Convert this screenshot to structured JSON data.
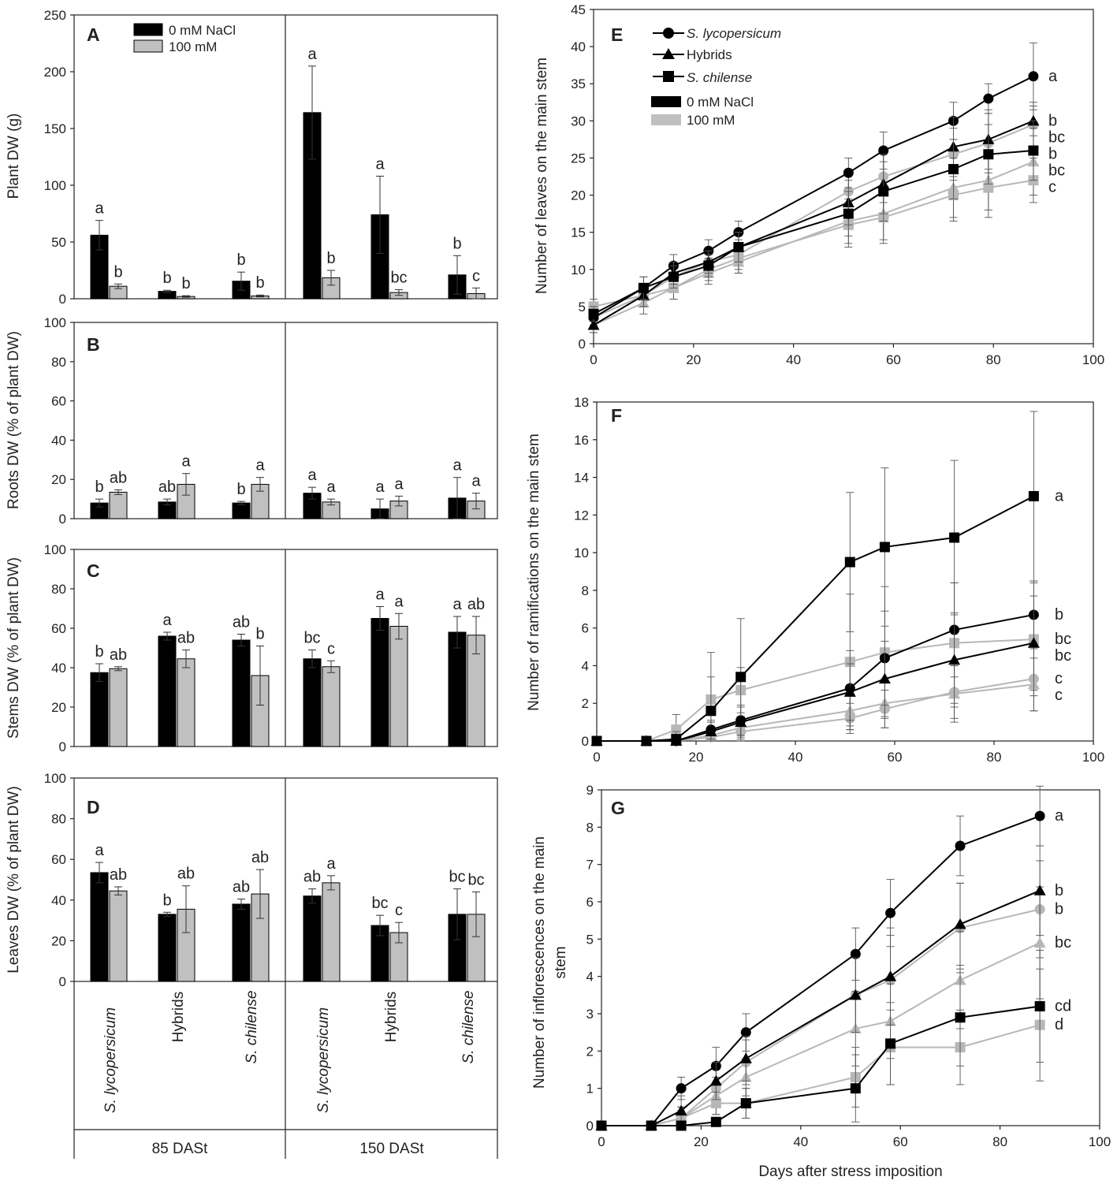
{
  "legend_bars": {
    "ctrl": "0 mM NaCl",
    "salt": "100 mM"
  },
  "legend_lines": {
    "s_lyco": "S. lycopersicum",
    "hybrids": "Hybrids",
    "s_chil": "S. chilense",
    "ctrl": "0 mM NaCl",
    "salt": "100 mM"
  },
  "colors": {
    "ctrl": "#000000",
    "salt": "#c0c0c0",
    "lineSalt": "#b7b7b7",
    "axis": "#222222"
  },
  "x_categories": {
    "c1": "S. lycopersicum",
    "c2": "Hybrids",
    "c3": "S. chilense",
    "c4": "S. lycopersicum",
    "c5": "Hybrids",
    "c6": "S. chilense"
  },
  "x_groups": {
    "g1": "85 DASt",
    "g2": "150 DASt"
  },
  "x_axis_title": "Days after stress imposition",
  "chart_data": [
    {
      "id": "A",
      "type": "bar",
      "panel_label": "A",
      "ylabel": "Plant DW (g)",
      "ylim": [
        0,
        250
      ],
      "yticks": [
        "0",
        "50",
        "100",
        "150",
        "200",
        "250"
      ],
      "categories": [
        "S. lycopersicum",
        "Hybrids",
        "S. chilense",
        "S. lycopersicum",
        "Hybrids",
        "S. chilense"
      ],
      "series": [
        {
          "name": "0 mM NaCl",
          "values": [
            56,
            6.5,
            15.5,
            164,
            74,
            21
          ],
          "errors": [
            13,
            1,
            8,
            41,
            34,
            17
          ],
          "letters": [
            "a",
            "b",
            "b",
            "a",
            "a",
            "b"
          ]
        },
        {
          "name": "100 mM",
          "values": [
            11,
            2,
            2.5,
            18.5,
            5.5,
            4.5
          ],
          "errors": [
            2,
            0.7,
            0.8,
            6.5,
            2.5,
            5
          ],
          "letters": [
            "b",
            "b",
            "b",
            "b",
            "bc",
            "c"
          ]
        }
      ]
    },
    {
      "id": "B",
      "type": "bar",
      "panel_label": "B",
      "ylabel": "Roots DW (% of plant DW)",
      "ylim": [
        0,
        100
      ],
      "yticks": [
        "0",
        "20",
        "40",
        "60",
        "80",
        "100"
      ],
      "categories": [
        "S. lycopersicum",
        "Hybrids",
        "S. chilense",
        "S. lycopersicum",
        "Hybrids",
        "S. chilense"
      ],
      "series": [
        {
          "name": "0 mM NaCl",
          "values": [
            8,
            8.5,
            8,
            13,
            5,
            10.5
          ],
          "errors": [
            2,
            1.5,
            0.8,
            3,
            5,
            10.5
          ],
          "letters": [
            "b",
            "ab",
            "b",
            "a",
            "a",
            "a"
          ]
        },
        {
          "name": "100 mM",
          "values": [
            13.5,
            17.5,
            17.5,
            8.5,
            9,
            9
          ],
          "errors": [
            1.2,
            5.5,
            3.5,
            1.5,
            2.5,
            4
          ],
          "letters": [
            "ab",
            "a",
            "a",
            "a",
            "a",
            "a"
          ]
        }
      ]
    },
    {
      "id": "C",
      "type": "bar",
      "panel_label": "C",
      "ylabel": "Stems DW (% of plant DW)",
      "ylim": [
        0,
        100
      ],
      "yticks": [
        "0",
        "20",
        "40",
        "60",
        "80",
        "100"
      ],
      "categories": [
        "S. lycopersicum",
        "Hybrids",
        "S. chilense",
        "S. lycopersicum",
        "Hybrids",
        "S. chilense"
      ],
      "series": [
        {
          "name": "0 mM NaCl",
          "values": [
            37.5,
            56,
            54,
            44.5,
            65,
            58
          ],
          "errors": [
            4.5,
            2,
            3,
            4.5,
            6,
            8
          ],
          "letters": [
            "b",
            "a",
            "ab",
            "bc",
            "a",
            "a"
          ]
        },
        {
          "name": "100 mM",
          "values": [
            39.5,
            44.5,
            36,
            40.5,
            61,
            56.5
          ],
          "errors": [
            1,
            4.5,
            15,
            3,
            6.5,
            9.5
          ],
          "letters": [
            "ab",
            "ab",
            "b",
            "c",
            "a",
            "ab"
          ]
        }
      ]
    },
    {
      "id": "D",
      "type": "bar",
      "panel_label": "D",
      "ylabel": "Leaves DW (% of plant DW)",
      "ylim": [
        0,
        100
      ],
      "yticks": [
        "0",
        "20",
        "40",
        "60",
        "80",
        "100"
      ],
      "categories": [
        "S. lycopersicum",
        "Hybrids",
        "S. chilense",
        "S. lycopersicum",
        "Hybrids",
        "S. chilense"
      ],
      "series": [
        {
          "name": "0 mM NaCl",
          "values": [
            53.5,
            33,
            38,
            42,
            27.5,
            33
          ],
          "errors": [
            5,
            1,
            2.5,
            3.5,
            5,
            12.5
          ],
          "letters": [
            "a",
            "b",
            "ab",
            "ab",
            "bc",
            "bc"
          ]
        },
        {
          "name": "100 mM",
          "values": [
            44.5,
            35.5,
            43,
            48.5,
            24,
            33
          ],
          "errors": [
            2,
            11.5,
            12,
            3.5,
            5,
            11
          ],
          "letters": [
            "ab",
            "ab",
            "ab",
            "a",
            "c",
            "bc"
          ]
        }
      ]
    },
    {
      "id": "E",
      "type": "line",
      "panel_label": "E",
      "ylabel": "Number of leaves on the main stem",
      "xlim": [
        0,
        100
      ],
      "ylim": [
        0,
        45
      ],
      "xticks": [
        "0",
        "20",
        "40",
        "60",
        "80",
        "100"
      ],
      "yticks": [
        "0",
        "5",
        "10",
        "15",
        "20",
        "25",
        "30",
        "35",
        "40",
        "45"
      ],
      "x": [
        0,
        10,
        16,
        23,
        29,
        51,
        58,
        72,
        79,
        88
      ],
      "series": [
        {
          "name": "S. lycopersicum 0 mM NaCl",
          "marker": "circle",
          "treatment": "ctrl",
          "values": [
            3.5,
            7.5,
            10.5,
            12.5,
            15,
            23,
            26,
            30,
            33,
            36
          ],
          "err": [
            1,
            1.5,
            1.5,
            1.5,
            1.5,
            2,
            2.5,
            2.5,
            2,
            4.5
          ],
          "letter": "a"
        },
        {
          "name": "Hybrids 0 mM NaCl",
          "marker": "triangle",
          "treatment": "ctrl",
          "values": [
            2.5,
            6.5,
            9.5,
            11,
            13,
            19,
            21.5,
            26.5,
            27.5,
            30
          ],
          "err": [
            1,
            1.5,
            1.5,
            1.5,
            2,
            3,
            4,
            4,
            4,
            2
          ],
          "letter": "b"
        },
        {
          "name": "S. chilense 0 mM NaCl",
          "marker": "square",
          "treatment": "ctrl",
          "values": [
            4,
            7.5,
            9,
            10.5,
            13,
            17.5,
            20.5,
            23.5,
            25.5,
            26
          ],
          "err": [
            1,
            1.5,
            1.5,
            1.5,
            2,
            3,
            4,
            4,
            4,
            4
          ],
          "letter": "b"
        },
        {
          "name": "S. lycopersicum 100 mM",
          "marker": "circle",
          "treatment": "salt",
          "values": [
            3.5,
            6.5,
            9,
            11,
            12,
            20.5,
            22.5,
            25.5,
            27,
            29.5
          ],
          "err": [
            1,
            1.5,
            1.5,
            1.5,
            2,
            3,
            3.5,
            3.5,
            4,
            3
          ],
          "letter": "bc"
        },
        {
          "name": "Hybrids 100 mM",
          "marker": "triangle",
          "treatment": "salt",
          "values": [
            2.5,
            5.5,
            7.5,
            9.5,
            11,
            16.5,
            17.5,
            21,
            22,
            24.5
          ],
          "err": [
            1,
            1.5,
            1.5,
            1.5,
            1.5,
            3,
            3.5,
            4,
            4,
            4.5
          ],
          "letter": "bc"
        },
        {
          "name": "S. chilense 100 mM",
          "marker": "square",
          "treatment": "salt",
          "values": [
            5,
            6.5,
            7.5,
            10,
            11.5,
            16,
            17,
            20,
            21,
            22
          ],
          "err": [
            1,
            1.5,
            1.5,
            1.5,
            2,
            3,
            3.5,
            3.5,
            4,
            3
          ],
          "letter": "c"
        }
      ]
    },
    {
      "id": "F",
      "type": "line",
      "panel_label": "F",
      "ylabel": "Number of ramifications on the main stem",
      "xlim": [
        0,
        100
      ],
      "ylim": [
        0,
        18
      ],
      "xticks": [
        "0",
        "20",
        "40",
        "60",
        "80",
        "100"
      ],
      "yticks": [
        "0",
        "2",
        "4",
        "6",
        "8",
        "10",
        "12",
        "14",
        "16",
        "18"
      ],
      "x": [
        0,
        10,
        16,
        23,
        29,
        51,
        58,
        72,
        88
      ],
      "series": [
        {
          "name": "S. chilense 0 mM NaCl",
          "marker": "square",
          "treatment": "ctrl",
          "values": [
            0,
            0,
            0.1,
            1.6,
            3.4,
            9.5,
            10.3,
            10.8,
            13
          ],
          "err": [
            0,
            0,
            0.4,
            3.1,
            3.1,
            3.7,
            4.2,
            4.1,
            4.5
          ],
          "letter": "a"
        },
        {
          "name": "S. lycopersicum 0 mM NaCl",
          "marker": "circle",
          "treatment": "ctrl",
          "values": [
            0,
            0,
            0,
            0.6,
            1.1,
            2.8,
            4.4,
            5.9,
            6.7
          ],
          "err": [
            0,
            0,
            0,
            0.5,
            0.8,
            2,
            2.5,
            2.5,
            1.8
          ],
          "letter": "b"
        },
        {
          "name": "S. chilense 100 mM",
          "marker": "square",
          "treatment": "salt",
          "values": [
            0,
            0,
            0.6,
            2.2,
            2.7,
            4.2,
            4.7,
            5.2,
            5.4
          ],
          "err": [
            0,
            0,
            0.8,
            1.2,
            1.2,
            3.6,
            3.5,
            3.2,
            3
          ],
          "letter": "bc"
        },
        {
          "name": "Hybrids 0 mM NaCl",
          "marker": "triangle",
          "treatment": "ctrl",
          "values": [
            0,
            0,
            0,
            0.5,
            1,
            2.6,
            3.3,
            4.3,
            5.2
          ],
          "err": [
            0,
            0,
            0,
            0.5,
            0.8,
            1.5,
            2,
            2.5,
            2.5
          ],
          "letter": "bc"
        },
        {
          "name": "S. lycopersicum 100 mM",
          "marker": "circle",
          "treatment": "salt",
          "values": [
            0,
            0,
            0,
            0.2,
            0.5,
            1.2,
            1.7,
            2.6,
            3.3
          ],
          "err": [
            0,
            0,
            0,
            0.3,
            0.5,
            0.8,
            1,
            1.4,
            1.7
          ],
          "letter": "c"
        },
        {
          "name": "Hybrids 100 mM",
          "marker": "triangle",
          "treatment": "salt",
          "values": [
            0,
            0,
            0,
            0.3,
            0.7,
            1.6,
            2,
            2.5,
            3
          ],
          "err": [
            0,
            0,
            0,
            0.4,
            0.6,
            1,
            1.3,
            1.5,
            1.4
          ],
          "letter": "c"
        }
      ]
    },
    {
      "id": "G",
      "type": "line",
      "panel_label": "G",
      "ylabel": "Number of inflorescences on the main stem",
      "xlabel": "Days after stress imposition",
      "xlim": [
        0,
        100
      ],
      "ylim": [
        0,
        9
      ],
      "xticks": [
        "0",
        "20",
        "40",
        "60",
        "80",
        "100"
      ],
      "yticks": [
        "0",
        "1",
        "2",
        "3",
        "4",
        "5",
        "6",
        "7",
        "8",
        "9"
      ],
      "x": [
        0,
        10,
        16,
        23,
        29,
        51,
        58,
        72,
        88
      ],
      "series": [
        {
          "name": "S. lycopersicum 0 mM NaCl",
          "marker": "circle",
          "treatment": "ctrl",
          "values": [
            0,
            0,
            1,
            1.6,
            2.5,
            4.6,
            5.7,
            7.5,
            8.3
          ],
          "err": [
            0,
            0,
            0.3,
            0.5,
            0.5,
            0.7,
            0.9,
            0.8,
            0.8
          ],
          "letter": "a"
        },
        {
          "name": "Hybrids 0 mM NaCl",
          "marker": "triangle",
          "treatment": "ctrl",
          "values": [
            0,
            0,
            0.4,
            1.2,
            1.8,
            3.5,
            4,
            5.4,
            6.3
          ],
          "err": [
            0,
            0,
            0.4,
            0.5,
            0.6,
            1,
            1.3,
            1.1,
            1.2
          ],
          "letter": "b"
        },
        {
          "name": "S. lycopersicum 100 mM",
          "marker": "circle",
          "treatment": "salt",
          "values": [
            0,
            0,
            0.2,
            1,
            1.7,
            3.5,
            3.9,
            5.3,
            5.8
          ],
          "err": [
            0,
            0,
            0.3,
            0.5,
            0.6,
            1,
            1.2,
            1.2,
            1.3
          ],
          "letter": "b"
        },
        {
          "name": "Hybrids 100 mM",
          "marker": "triangle",
          "treatment": "salt",
          "values": [
            0,
            0,
            0.2,
            0.8,
            1.3,
            2.6,
            2.8,
            3.9,
            4.9
          ],
          "err": [
            0,
            0,
            0.3,
            0.5,
            0.5,
            1,
            1,
            1.3,
            1.5
          ],
          "letter": "bc"
        },
        {
          "name": "S. chilense 0 mM NaCl",
          "marker": "square",
          "treatment": "ctrl",
          "values": [
            0,
            0,
            0,
            0.1,
            0.6,
            1,
            2.2,
            2.9,
            3.2
          ],
          "err": [
            0,
            0,
            0,
            0.1,
            0.4,
            0.9,
            1.1,
            1.3,
            1.5
          ],
          "letter": "cd"
        },
        {
          "name": "S. chilense 100 mM",
          "marker": "square",
          "treatment": "salt",
          "values": [
            0,
            0,
            0.2,
            0.6,
            0.6,
            1.3,
            2.1,
            2.1,
            2.7
          ],
          "err": [
            0,
            0,
            0.2,
            0.3,
            0.4,
            0.8,
            1,
            1,
            1.5
          ],
          "letter": "d"
        }
      ]
    }
  ]
}
